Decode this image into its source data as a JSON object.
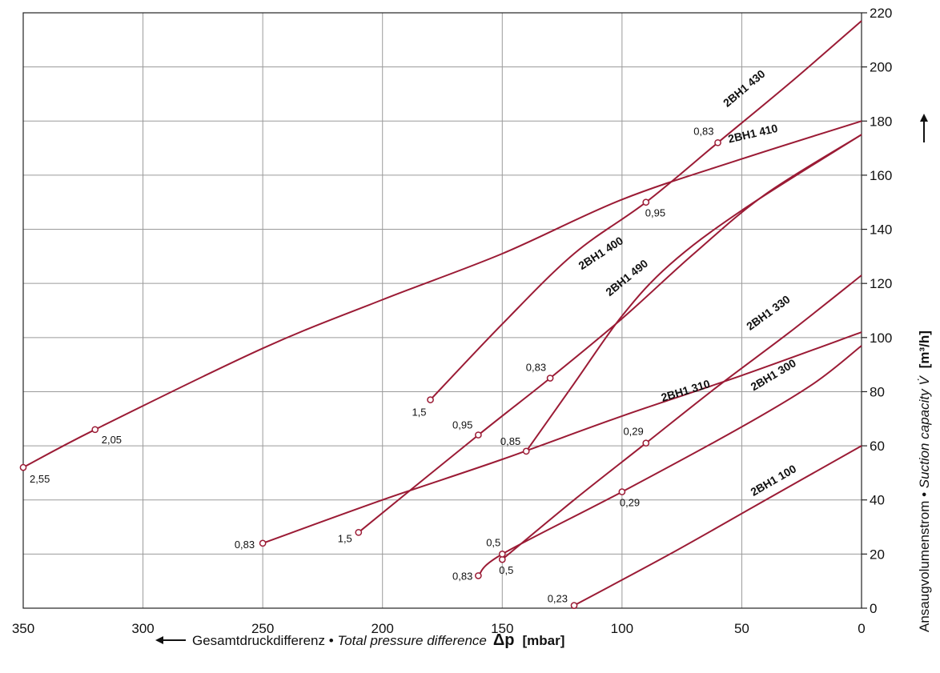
{
  "chart_data": {
    "type": "line",
    "x_reversed": true,
    "xlim": [
      0,
      350
    ],
    "ylim": [
      0,
      220
    ],
    "x_ticks": [
      "350",
      "300",
      "250",
      "200",
      "150",
      "100",
      "50",
      "0"
    ],
    "x_tick_values": [
      350,
      300,
      250,
      200,
      150,
      100,
      50,
      0
    ],
    "y_ticks": [
      "0",
      "20",
      "40",
      "60",
      "80",
      "100",
      "120",
      "140",
      "160",
      "180",
      "200",
      "220"
    ],
    "y_tick_values": [
      0,
      20,
      40,
      60,
      80,
      100,
      120,
      140,
      160,
      180,
      200,
      220
    ],
    "grid": true,
    "xlabel_prefix": "Gesamtdruckdifferenz • ",
    "xlabel_italic": "Total pressure difference",
    "xlabel_symbol": "Δp",
    "xlabel_unit": "[mbar]",
    "ylabel_prefix": "Ansaugvolumenstrom • ",
    "ylabel_italic": "Suction capacity V̇",
    "ylabel_unit": "[m³/h]",
    "line_color": "#9b1b35",
    "series": [
      {
        "name": "2BH1 430",
        "curve": [
          [
            180,
            77
          ],
          [
            150,
            105
          ],
          [
            120,
            131
          ],
          [
            90,
            150
          ],
          [
            60,
            172
          ],
          [
            30,
            194
          ],
          [
            0,
            217
          ]
        ],
        "points": [
          [
            180,
            77,
            "1,5"
          ],
          [
            90,
            150,
            "0,95"
          ],
          [
            60,
            172,
            "0,83"
          ]
        ]
      },
      {
        "name": "2BH1 410",
        "curve": [
          [
            350,
            52
          ],
          [
            320,
            66
          ],
          [
            250,
            96
          ],
          [
            200,
            114
          ],
          [
            150,
            131
          ],
          [
            100,
            151
          ],
          [
            50,
            166
          ],
          [
            0,
            180
          ]
        ],
        "points": [
          [
            350,
            52,
            "2,55"
          ],
          [
            320,
            66,
            "2,05"
          ]
        ]
      },
      {
        "name": "2BH1 400",
        "curve": [
          [
            210,
            28
          ],
          [
            160,
            64
          ],
          [
            130,
            85
          ],
          [
            100,
            107
          ],
          [
            70,
            131
          ],
          [
            40,
            153
          ],
          [
            0,
            175
          ]
        ],
        "points": [
          [
            210,
            28,
            "1,5"
          ],
          [
            160,
            64,
            "0,95"
          ],
          [
            130,
            85,
            "0,83"
          ]
        ]
      },
      {
        "name": "2BH1 490",
        "curve": [
          [
            140,
            58
          ],
          [
            120,
            83
          ],
          [
            100,
            108
          ],
          [
            80,
            127
          ],
          [
            50,
            147
          ],
          [
            0,
            175
          ]
        ],
        "points": [
          [
            140,
            58,
            "0,85"
          ]
        ]
      },
      {
        "name": "2BH1 330",
        "curve": [
          [
            150,
            18
          ],
          [
            120,
            40
          ],
          [
            90,
            61
          ],
          [
            60,
            82
          ],
          [
            30,
            102
          ],
          [
            0,
            123
          ]
        ],
        "points": [
          [
            150,
            18,
            "0,5"
          ],
          [
            90,
            61,
            "0,29"
          ]
        ]
      },
      {
        "name": "2BH1 310",
        "curve": [
          [
            250,
            24
          ],
          [
            200,
            40
          ],
          [
            150,
            55
          ],
          [
            100,
            71
          ],
          [
            50,
            86
          ],
          [
            0,
            102
          ]
        ],
        "points": [
          [
            250,
            24,
            "0,83"
          ]
        ]
      },
      {
        "name": "2BH1 300",
        "curve": [
          [
            160,
            12
          ],
          [
            150,
            20
          ],
          [
            100,
            43
          ],
          [
            50,
            67
          ],
          [
            20,
            83
          ],
          [
            0,
            97
          ]
        ],
        "points": [
          [
            160,
            12,
            "0,83"
          ],
          [
            150,
            20,
            "0,5"
          ],
          [
            100,
            43,
            "0,29"
          ]
        ]
      },
      {
        "name": "2BH1 100",
        "curve": [
          [
            120,
            1
          ],
          [
            80,
            20
          ],
          [
            40,
            40
          ],
          [
            0,
            60
          ]
        ],
        "points": [
          [
            120,
            1,
            "0,23"
          ]
        ]
      }
    ]
  }
}
